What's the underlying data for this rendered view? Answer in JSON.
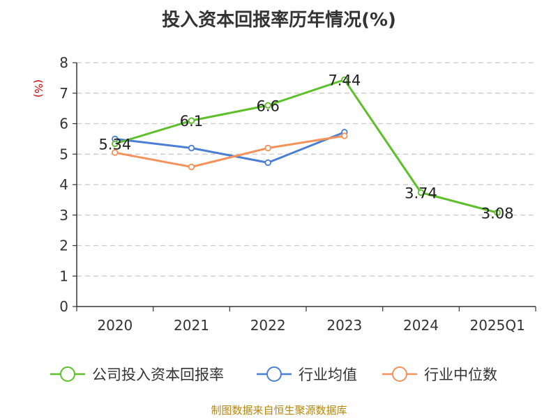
{
  "chart_data": {
    "type": "line",
    "title": "投入资本回报率历年情况(%)",
    "ylabel": "(%)",
    "xlabel": "",
    "categories": [
      "2020",
      "2021",
      "2022",
      "2023",
      "2024",
      "2025Q1"
    ],
    "ylim": [
      0,
      8
    ],
    "yticks": [
      0,
      1,
      2,
      3,
      4,
      5,
      6,
      7,
      8
    ],
    "grid": true,
    "legend_position": "bottom",
    "series": [
      {
        "name": "公司投入资本回报率",
        "color": "#5dbf2a",
        "values": [
          5.34,
          6.1,
          6.6,
          7.44,
          3.74,
          3.08
        ],
        "labels": [
          "5.34",
          "6.1",
          "6.6",
          "7.44",
          "3.74",
          "3.08"
        ]
      },
      {
        "name": "行业均值",
        "color": "#4a7fd4",
        "values": [
          5.5,
          5.2,
          4.72,
          5.72,
          null,
          null
        ]
      },
      {
        "name": "行业中位数",
        "color": "#f5915a",
        "values": [
          5.05,
          4.58,
          5.2,
          5.6,
          null,
          null
        ]
      }
    ]
  },
  "source_note": "制图数据来自恒生聚源数据库"
}
